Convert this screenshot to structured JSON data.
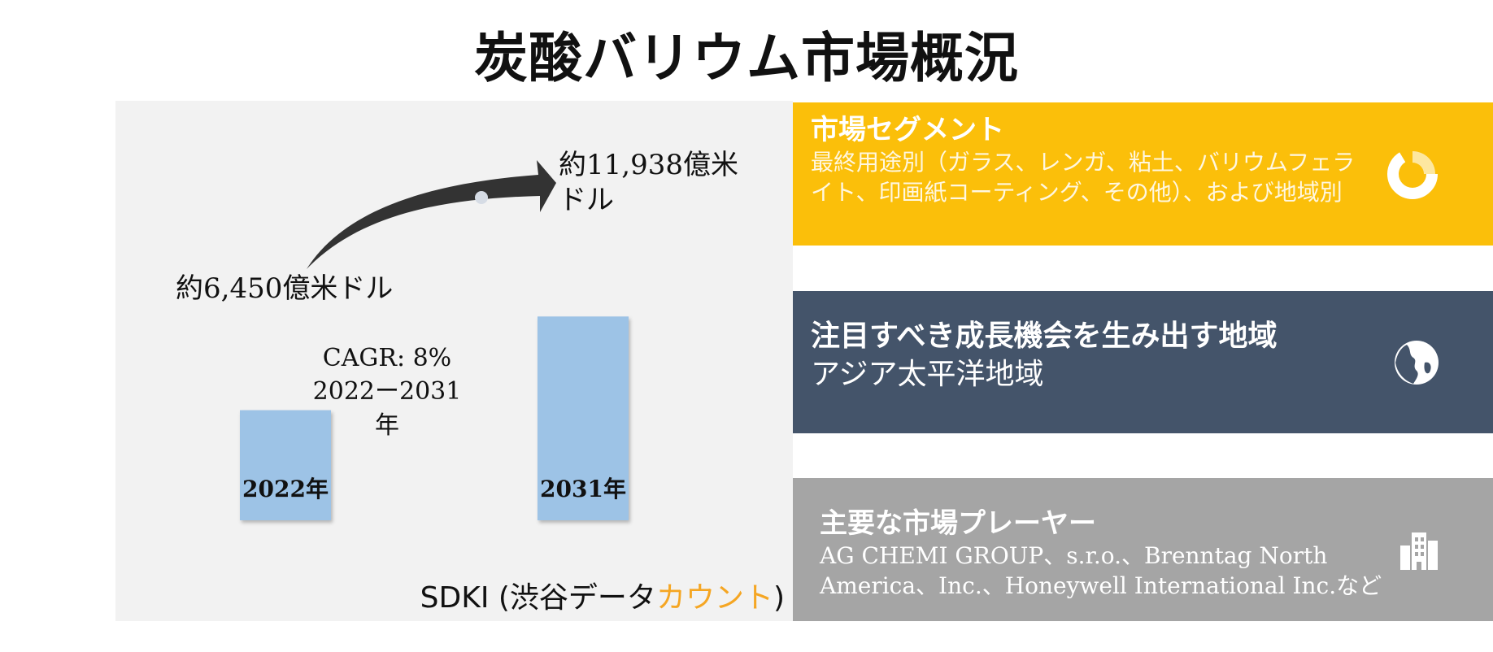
{
  "title": "炭酸バリウム市場概況",
  "chart_data": {
    "type": "bar",
    "categories": [
      "2022年",
      "2031年"
    ],
    "values": [
      6450,
      11938
    ],
    "value_labels": [
      "約6,450億米ドル",
      "約11,938億米ドル"
    ],
    "cagr_text": "CAGR: 8%",
    "cagr_period": "2022ー2031年",
    "bar_color": "#9dc3e6",
    "arrow_color": "#333333"
  },
  "source": {
    "prefix": "SDKI (渋谷データ",
    "accent": "カウント",
    "suffix": ")"
  },
  "cards": [
    {
      "title": "市場セグメント",
      "body": "最終用途別（ガラス、レンガ、粘土、バリウムフェライト、印画紙コーティング、その他）、および地域別",
      "color": "#fbbf0a",
      "icon": "donut-chart-icon"
    },
    {
      "title": "注目すべき成長機会を生み出す地域",
      "body": "アジア太平洋地域",
      "color": "#44546a",
      "icon": "globe-icon"
    },
    {
      "title": "主要な市場プレーヤー",
      "body": "AG CHEMI GROUP、s.r.o.、Brenntag North America、Inc.、Honeywell International Inc.など",
      "color": "#a5a5a5",
      "icon": "buildings-icon"
    }
  ]
}
